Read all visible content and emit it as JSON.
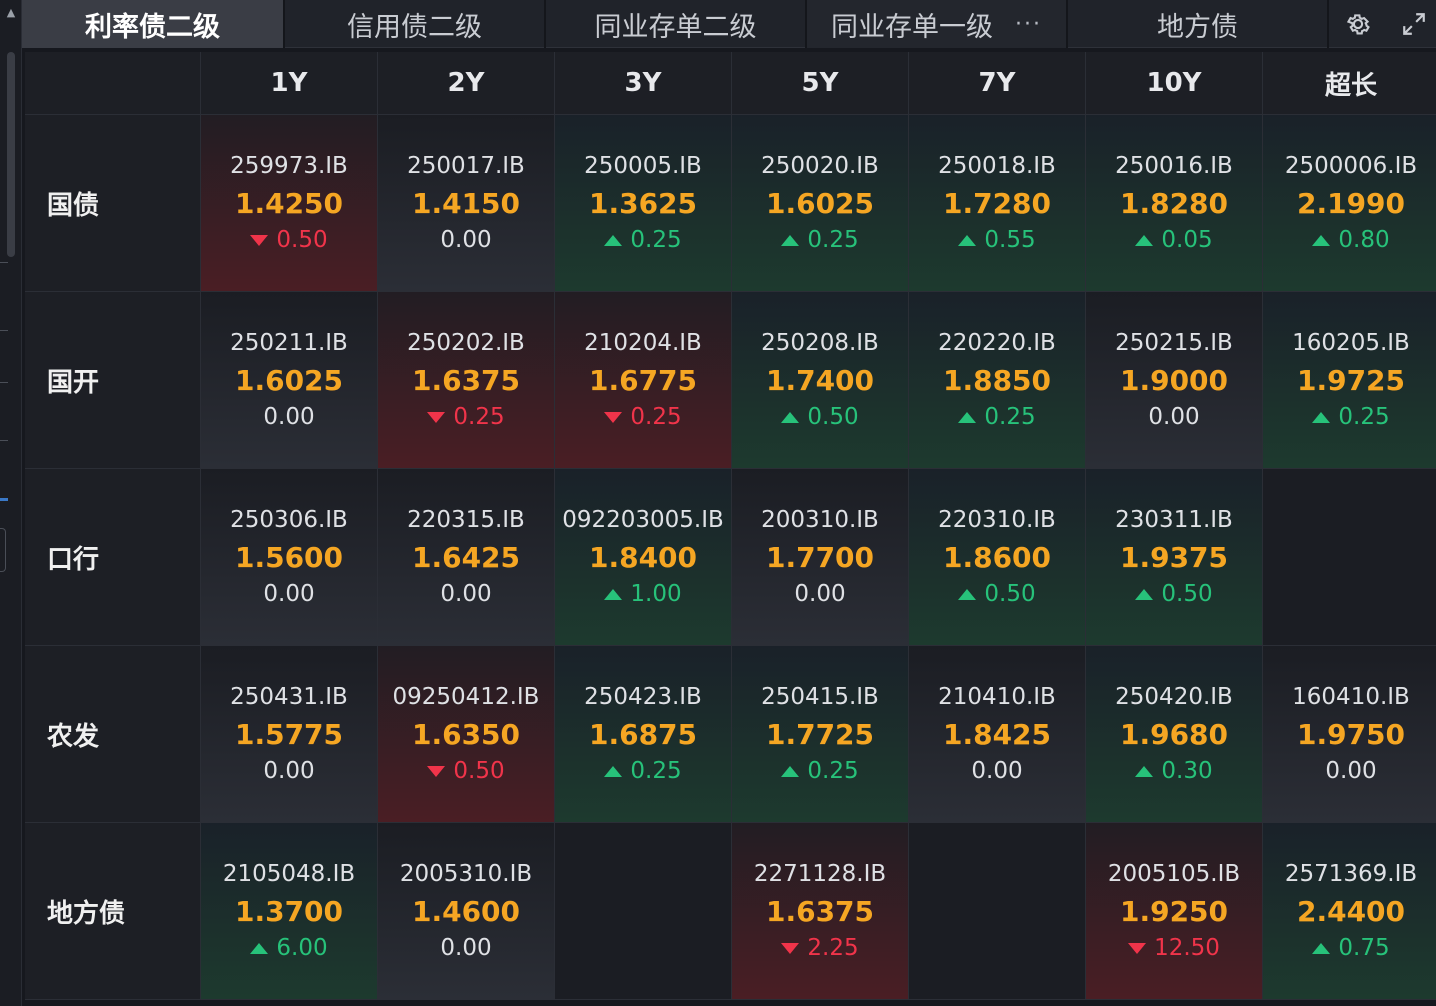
{
  "tabs": [
    {
      "label": "利率债二级",
      "active": true
    },
    {
      "label": "信用债二级",
      "active": false
    },
    {
      "label": "同业存单二级",
      "active": false
    },
    {
      "label": "同业存单一级",
      "active": false,
      "more": "···"
    },
    {
      "label": "地方债",
      "active": false
    }
  ],
  "toolbar": {
    "settings_icon": "gear-icon",
    "expand_icon": "expand-icon"
  },
  "columns": [
    "1Y",
    "2Y",
    "3Y",
    "5Y",
    "7Y",
    "10Y",
    "超长"
  ],
  "rows": [
    {
      "label": "国债",
      "cells": [
        {
          "code": "259973.IB",
          "yield": "1.4250",
          "change": "0.50",
          "dir": "down"
        },
        {
          "code": "250017.IB",
          "yield": "1.4150",
          "change": "0.00",
          "dir": "flat"
        },
        {
          "code": "250005.IB",
          "yield": "1.3625",
          "change": "0.25",
          "dir": "up"
        },
        {
          "code": "250020.IB",
          "yield": "1.6025",
          "change": "0.25",
          "dir": "up"
        },
        {
          "code": "250018.IB",
          "yield": "1.7280",
          "change": "0.55",
          "dir": "up"
        },
        {
          "code": "250016.IB",
          "yield": "1.8280",
          "change": "0.05",
          "dir": "up"
        },
        {
          "code": "2500006.IB",
          "yield": "2.1990",
          "change": "0.80",
          "dir": "up"
        }
      ]
    },
    {
      "label": "国开",
      "cells": [
        {
          "code": "250211.IB",
          "yield": "1.6025",
          "change": "0.00",
          "dir": "flat"
        },
        {
          "code": "250202.IB",
          "yield": "1.6375",
          "change": "0.25",
          "dir": "down"
        },
        {
          "code": "210204.IB",
          "yield": "1.6775",
          "change": "0.25",
          "dir": "down"
        },
        {
          "code": "250208.IB",
          "yield": "1.7400",
          "change": "0.50",
          "dir": "up"
        },
        {
          "code": "220220.IB",
          "yield": "1.8850",
          "change": "0.25",
          "dir": "up"
        },
        {
          "code": "250215.IB",
          "yield": "1.9000",
          "change": "0.00",
          "dir": "flat"
        },
        {
          "code": "160205.IB",
          "yield": "1.9725",
          "change": "0.25",
          "dir": "up"
        }
      ]
    },
    {
      "label": "口行",
      "cells": [
        {
          "code": "250306.IB",
          "yield": "1.5600",
          "change": "0.00",
          "dir": "flat"
        },
        {
          "code": "220315.IB",
          "yield": "1.6425",
          "change": "0.00",
          "dir": "flat"
        },
        {
          "code": "092203005.IB",
          "yield": "1.8400",
          "change": "1.00",
          "dir": "up"
        },
        {
          "code": "200310.IB",
          "yield": "1.7700",
          "change": "0.00",
          "dir": "flat"
        },
        {
          "code": "220310.IB",
          "yield": "1.8600",
          "change": "0.50",
          "dir": "up"
        },
        {
          "code": "230311.IB",
          "yield": "1.9375",
          "change": "0.50",
          "dir": "up"
        },
        null
      ]
    },
    {
      "label": "农发",
      "cells": [
        {
          "code": "250431.IB",
          "yield": "1.5775",
          "change": "0.00",
          "dir": "flat"
        },
        {
          "code": "09250412.IB",
          "yield": "1.6350",
          "change": "0.50",
          "dir": "down"
        },
        {
          "code": "250423.IB",
          "yield": "1.6875",
          "change": "0.25",
          "dir": "up"
        },
        {
          "code": "250415.IB",
          "yield": "1.7725",
          "change": "0.25",
          "dir": "up"
        },
        {
          "code": "210410.IB",
          "yield": "1.8425",
          "change": "0.00",
          "dir": "flat"
        },
        {
          "code": "250420.IB",
          "yield": "1.9680",
          "change": "0.30",
          "dir": "up"
        },
        {
          "code": "160410.IB",
          "yield": "1.9750",
          "change": "0.00",
          "dir": "flat"
        }
      ]
    },
    {
      "label": "地方债",
      "cells": [
        {
          "code": "2105048.IB",
          "yield": "1.3700",
          "change": "6.00",
          "dir": "up"
        },
        {
          "code": "2005310.IB",
          "yield": "1.4600",
          "change": "0.00",
          "dir": "flat"
        },
        null,
        {
          "code": "2271128.IB",
          "yield": "1.6375",
          "change": "2.25",
          "dir": "down"
        },
        null,
        {
          "code": "2005105.IB",
          "yield": "1.9250",
          "change": "12.50",
          "dir": "down"
        },
        {
          "code": "2571369.IB",
          "yield": "2.4400",
          "change": "0.75",
          "dir": "up"
        }
      ]
    }
  ],
  "colors": {
    "yield": "#f5a623",
    "up": "#27c27a",
    "down": "#f0344a",
    "flat": "#dfe1e5"
  }
}
